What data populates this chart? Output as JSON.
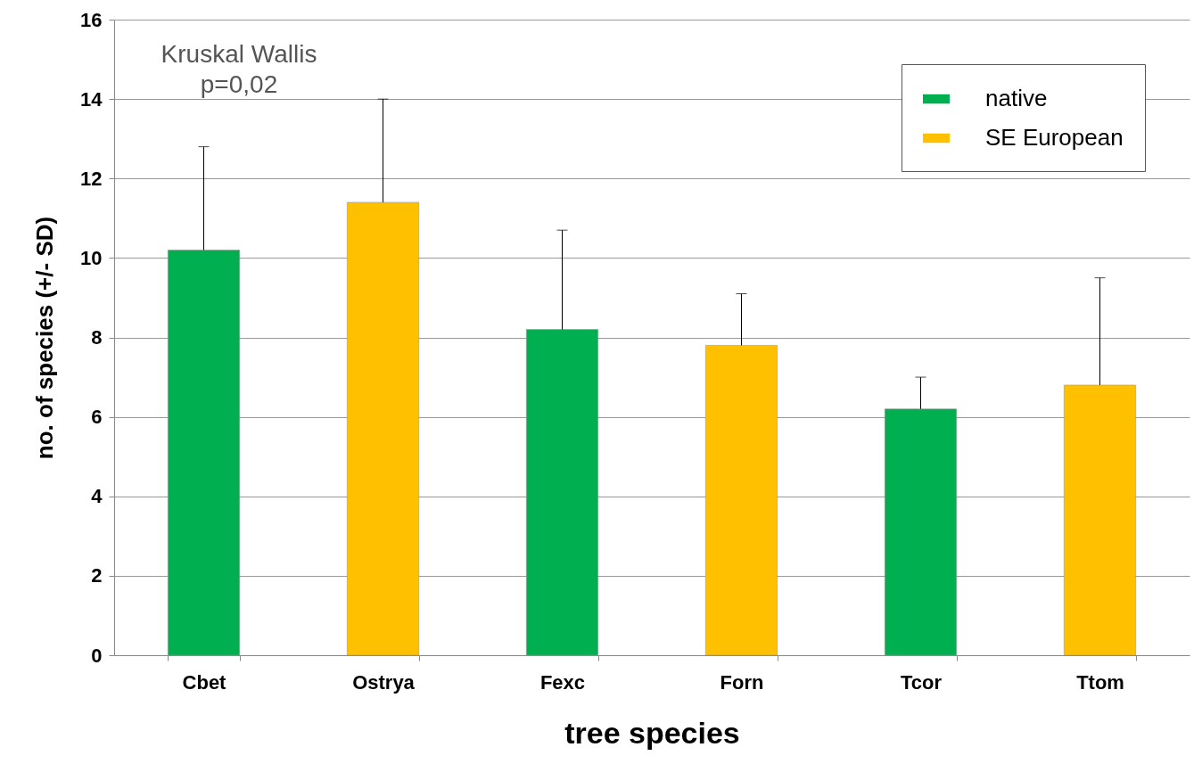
{
  "chart_data": {
    "type": "bar",
    "xlabel": "tree species",
    "ylabel": "no. of species    (+/- SD)",
    "categories": [
      "Cbet",
      "Ostrya",
      "Fexc",
      "Forn",
      "Tcor",
      "Ttom"
    ],
    "series": [
      {
        "name": "native",
        "color": "#00b050",
        "values": [
          10.2,
          null,
          8.2,
          null,
          6.2,
          null
        ],
        "errors": [
          [
            10.2,
            12.8
          ],
          null,
          [
            8.2,
            10.7
          ],
          null,
          [
            6.2,
            7.0
          ],
          null
        ]
      },
      {
        "name": "SE European",
        "color": "#ffc000",
        "values": [
          null,
          11.4,
          null,
          7.8,
          null,
          6.8
        ],
        "errors": [
          null,
          [
            11.4,
            14.0
          ],
          null,
          [
            7.8,
            9.1
          ],
          null,
          [
            6.8,
            9.5
          ]
        ]
      }
    ],
    "ylim": [
      0,
      16
    ],
    "yticks": [
      0,
      2,
      4,
      6,
      8,
      10,
      12,
      14,
      16
    ],
    "grid": "y",
    "legend": "top right",
    "annotations": [
      "Kruskal Wallis\np=0,02"
    ]
  }
}
